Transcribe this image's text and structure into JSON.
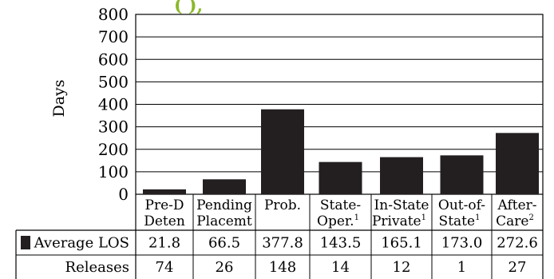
{
  "chart_data": {
    "type": "bar",
    "title": "(      ),",
    "ylabel": "Days",
    "ylim": [
      0,
      800
    ],
    "yticks": [
      "0",
      "100",
      "200",
      "300",
      "400",
      "500",
      "600",
      "700",
      "800"
    ],
    "grid": true,
    "series_color": "#231f20",
    "categories": [
      {
        "line1": "Pre-D",
        "line2": "Deten",
        "sup": ""
      },
      {
        "line1": "Pending",
        "line2": "Placemt",
        "sup": ""
      },
      {
        "line1": "Prob.",
        "line2": "",
        "sup": ""
      },
      {
        "line1": "State-",
        "line2": "Oper.",
        "sup": "1"
      },
      {
        "line1": "In-State",
        "line2": "Private",
        "sup": "1"
      },
      {
        "line1": "Out-of-",
        "line2": "State",
        "sup": "1"
      },
      {
        "line1": "After-",
        "line2": "Care",
        "sup": "2"
      }
    ],
    "series": [
      {
        "name": "Average LOS",
        "values": [
          21.8,
          66.5,
          377.8,
          143.5,
          165.1,
          173.0,
          272.6
        ]
      }
    ],
    "table": {
      "rows": [
        {
          "label": "Average LOS",
          "legend": true,
          "cells": [
            "21.8",
            "66.5",
            "377.8",
            "143.5",
            "165.1",
            "173.0",
            "272.6"
          ]
        },
        {
          "label": "Releases",
          "legend": false,
          "cells": [
            "74",
            "26",
            "148",
            "14",
            "12",
            "1",
            "27"
          ]
        }
      ]
    }
  }
}
